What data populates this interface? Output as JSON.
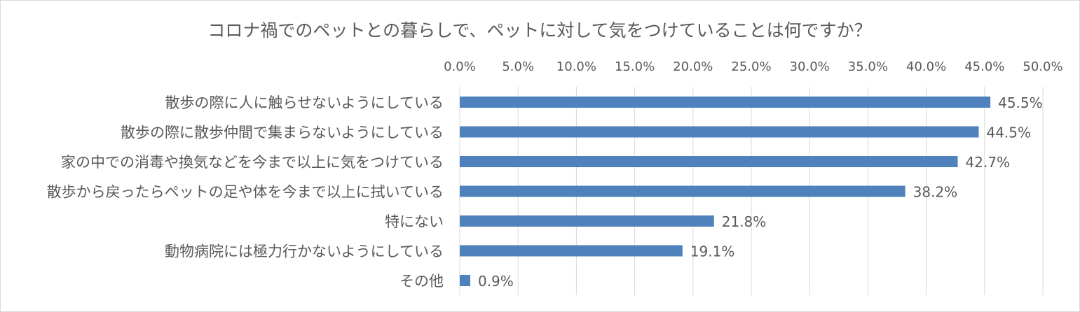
{
  "chart_data": {
    "type": "bar",
    "orientation": "horizontal",
    "title": "コロナ禍でのペットとの暮らしで、ペットに対して気をつけていることは何ですか？",
    "xlabel": "",
    "ylabel": "",
    "xlim": [
      0,
      50
    ],
    "x_ticks": [
      "0.0%",
      "5.0%",
      "10.0%",
      "15.0%",
      "20.0%",
      "25.0%",
      "30.0%",
      "35.0%",
      "40.0%",
      "45.0%",
      "50.0%"
    ],
    "tick_values": [
      0,
      5,
      10,
      15,
      20,
      25,
      30,
      35,
      40,
      45,
      50
    ],
    "axis_position": "top",
    "grid": true,
    "legend": "none",
    "bar_color": "#4f81bd",
    "categories": [
      "散歩の際に人に触らせないようにしている",
      "散歩の際に散歩仲間で集まらないようにしている",
      "家の中での消毒や換気などを今まで以上に気をつけている",
      "散歩から戻ったらペットの足や体を今まで以上に拭いている",
      "特にない",
      "動物病院には極力行かないようにしている",
      "その他"
    ],
    "values": [
      45.5,
      44.5,
      42.7,
      38.2,
      21.8,
      19.1,
      0.9
    ],
    "data_labels": [
      "45.5%",
      "44.5%",
      "42.7%",
      "38.2%",
      "21.8%",
      "19.1%",
      "0.9%"
    ]
  }
}
